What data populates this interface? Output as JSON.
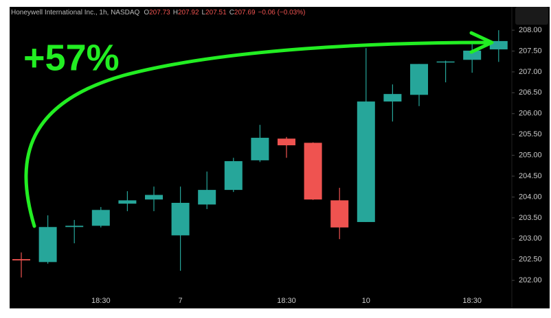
{
  "chart_data": {
    "type": "candlestick",
    "header": {
      "symbol": "Honeywell International Inc., 1h, NASDAQ",
      "ohlc": [
        {
          "label": "O",
          "value": "207.73"
        },
        {
          "label": "H",
          "value": "207.92"
        },
        {
          "label": "L",
          "value": "207.51"
        },
        {
          "label": "C",
          "value": "207.69"
        }
      ],
      "change": "−0.06 (−0.03%)"
    },
    "annotation": "+57%",
    "categories": [
      null,
      null,
      null,
      "18:30",
      null,
      null,
      "7",
      null,
      null,
      null,
      "18:30",
      null,
      null,
      "10",
      null,
      null,
      null,
      "18:30",
      null
    ],
    "open": [
      202.51,
      202.44,
      203.28,
      203.31,
      203.84,
      203.94,
      203.08,
      203.82,
      204.17,
      204.88,
      205.4,
      205.3,
      203.92,
      203.4,
      206.29,
      206.45,
      207.23,
      207.29,
      207.54
    ],
    "high": [
      202.67,
      203.56,
      203.45,
      203.76,
      204.14,
      204.25,
      204.25,
      204.61,
      204.94,
      205.73,
      205.44,
      205.31,
      204.22,
      207.57,
      206.7,
      207.19,
      207.27,
      207.74,
      208.0
    ],
    "low": [
      202.07,
      202.4,
      202.89,
      203.27,
      203.66,
      203.66,
      202.23,
      203.71,
      204.12,
      204.84,
      204.94,
      203.93,
      202.99,
      203.4,
      205.81,
      206.18,
      206.75,
      206.98,
      207.24
    ],
    "close": [
      202.48,
      203.28,
      203.31,
      203.69,
      203.92,
      204.05,
      203.86,
      204.17,
      204.86,
      205.42,
      205.24,
      203.94,
      203.27,
      206.29,
      206.47,
      207.19,
      207.25,
      207.51,
      207.74
    ],
    "up_color": "#26a69a",
    "down_color": "#ef5350",
    "annotation_color": "#22ee22",
    "ylim": [
      201.69,
      208.56
    ],
    "yticks": [
      {
        "value": 202,
        "label": "202.00"
      },
      {
        "value": 202.5,
        "label": "202.50"
      },
      {
        "value": 203,
        "label": "203.00"
      },
      {
        "value": 203.5,
        "label": "203.50"
      },
      {
        "value": 204,
        "label": "204.00"
      },
      {
        "value": 204.5,
        "label": "204.50"
      },
      {
        "value": 205,
        "label": "205.00"
      },
      {
        "value": 205.5,
        "label": "205.50"
      },
      {
        "value": 206,
        "label": "206.00"
      },
      {
        "value": 206.5,
        "label": "206.50"
      },
      {
        "value": 207,
        "label": "207.00"
      },
      {
        "value": 207.5,
        "label": "207.50"
      },
      {
        "value": 208,
        "label": "208.00"
      }
    ],
    "grid": false
  }
}
